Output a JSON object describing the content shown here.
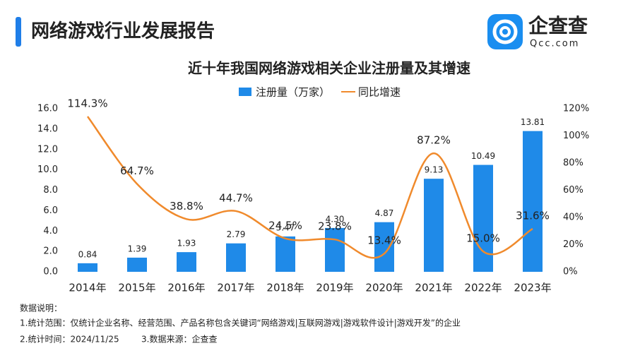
{
  "header": {
    "title": "网络游戏行业发展报告",
    "logo_name": "企查查",
    "logo_url": "Qcc.com"
  },
  "chart_data": {
    "type": "bar-line",
    "title": "近十年我国网络游戏相关企业注册量及其增速",
    "categories": [
      "2014年",
      "2015年",
      "2016年",
      "2017年",
      "2018年",
      "2019年",
      "2020年",
      "2021年",
      "2022年",
      "2023年"
    ],
    "series": [
      {
        "name": "注册量（万家）",
        "type": "bar",
        "color": "#1f8ae8",
        "values": [
          0.84,
          1.39,
          1.93,
          2.79,
          3.47,
          4.3,
          4.87,
          9.13,
          10.49,
          13.81
        ],
        "value_labels": [
          "0.84",
          "1.39",
          "1.93",
          "2.79",
          "3.47",
          "4.30",
          "4.87",
          "9.13",
          "10.49",
          "13.81"
        ]
      },
      {
        "name": "同比增速",
        "type": "line",
        "axis": "y2",
        "color": "#f08a2c",
        "values": [
          114.3,
          64.7,
          38.8,
          44.7,
          24.5,
          23.8,
          13.4,
          87.2,
          15.0,
          31.6
        ],
        "value_labels": [
          "114.3%",
          "64.7%",
          "38.8%",
          "44.7%",
          "24.5%",
          "23.8%",
          "13.4%",
          "87.2%",
          "15.0%",
          "31.6%"
        ]
      }
    ],
    "ylim": [
      0,
      16
    ],
    "yticks": [
      {
        "value": 0,
        "label": "0.0"
      },
      {
        "value": 2,
        "label": "2.0"
      },
      {
        "value": 4,
        "label": "4.0"
      },
      {
        "value": 6,
        "label": "6.0"
      },
      {
        "value": 8,
        "label": "8.0"
      },
      {
        "value": 10,
        "label": "10.0"
      },
      {
        "value": 12,
        "label": "12.0"
      },
      {
        "value": 14,
        "label": "14.0"
      },
      {
        "value": 16,
        "label": "16.0"
      }
    ],
    "y2lim": [
      0,
      120
    ],
    "y2ticks": [
      {
        "value": 0,
        "label": "0%"
      },
      {
        "value": 20,
        "label": "20%"
      },
      {
        "value": 40,
        "label": "40%"
      },
      {
        "value": 60,
        "label": "60%"
      },
      {
        "value": 80,
        "label": "80%"
      },
      {
        "value": 100,
        "label": "100%"
      },
      {
        "value": 120,
        "label": "120%"
      }
    ],
    "legend": "top",
    "grid": false
  },
  "notes": {
    "heading": "数据说明：",
    "scope": "1.统计范围：仅统计企业名称、经营范围、产品名称包含关键词“网络游戏|互联网游戏|游戏软件设计|游戏开发”的企业",
    "time": "2.统计时间：2024/11/25",
    "source": "3.数据来源：企查查"
  }
}
